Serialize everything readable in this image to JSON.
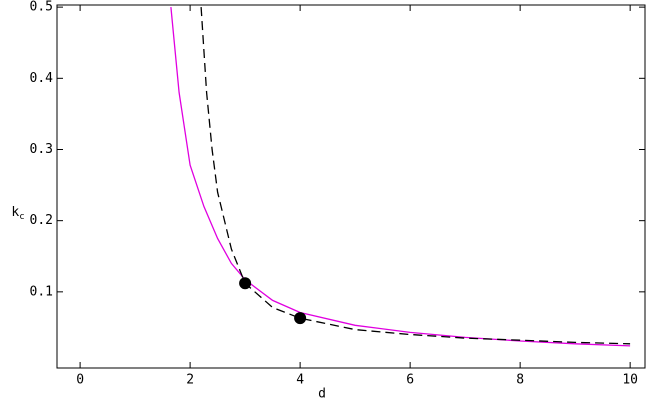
{
  "chart_data": {
    "type": "line",
    "xlabel": "d",
    "ylabel": "k",
    "ylabel_subscript": "c",
    "xlim": [
      -0.42,
      10.27
    ],
    "ylim": [
      -0.007,
      0.503
    ],
    "xticks": [
      0,
      2,
      4,
      6,
      8,
      10
    ],
    "yticks": [
      0.1,
      0.2,
      0.3,
      0.4,
      0.5
    ],
    "series": [
      {
        "color": "#e000e0",
        "style": "solid",
        "x": [
          1.65,
          1.8,
          2,
          2.25,
          2.5,
          2.75,
          3,
          3.5,
          4,
          5,
          6,
          7,
          8,
          9,
          10
        ],
        "values": [
          0.5,
          0.38,
          0.278,
          0.22,
          0.175,
          0.14,
          0.117,
          0.088,
          0.071,
          0.053,
          0.043,
          0.036,
          0.031,
          0.027,
          0.024
        ]
      },
      {
        "color": "#000000",
        "style": "dashed",
        "x": [
          2.2,
          2.3,
          2.4,
          2.5,
          2.75,
          3,
          3.5,
          4,
          5,
          6,
          7,
          8,
          9,
          10
        ],
        "values": [
          0.5,
          0.38,
          0.3,
          0.24,
          0.16,
          0.112,
          0.078,
          0.063,
          0.047,
          0.04,
          0.035,
          0.032,
          0.029,
          0.027
        ]
      }
    ],
    "points": {
      "color": "#000000",
      "x": [
        3,
        4
      ],
      "values": [
        0.112,
        0.063
      ]
    }
  }
}
